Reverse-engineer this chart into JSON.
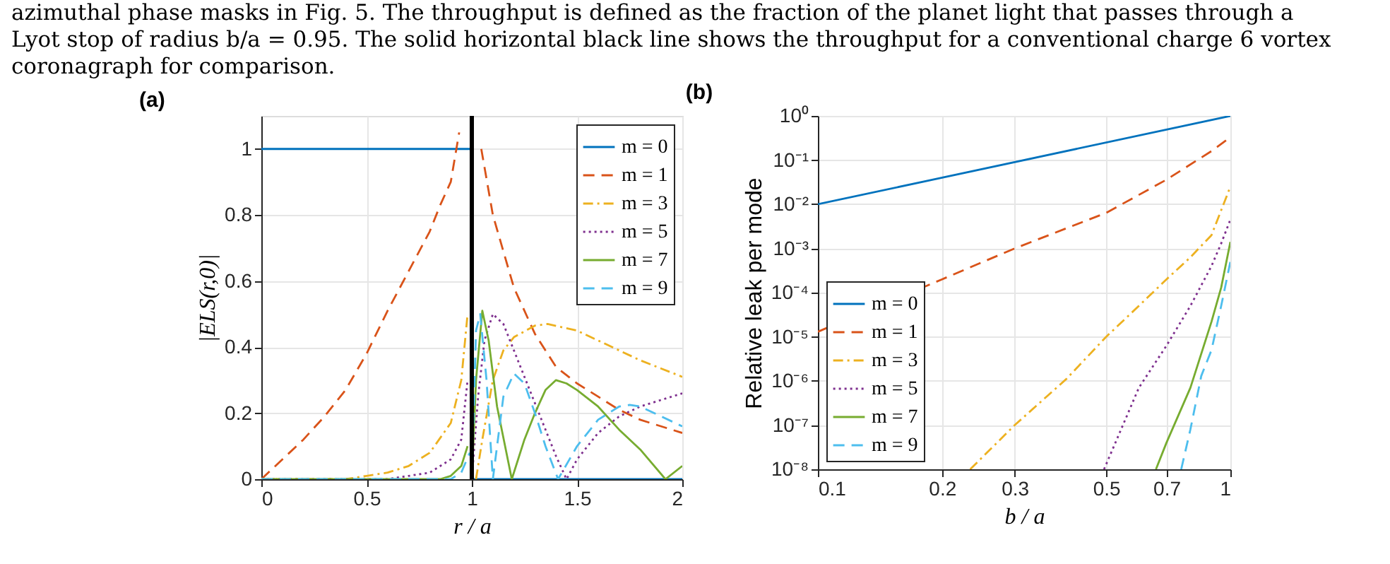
{
  "chart_data": [
    {
      "type": "line",
      "title": "(a)",
      "xlabel": "r / a",
      "ylabel": "|ELS(r,0)|",
      "annotations": [
        "azimuthal phase masks in Fig. 5. The throughput is defined as the fraction of the planet light that passes through a",
        "Lyot stop of radius b/a = 0.95. The solid horizontal black line shows the throughput for a conventional charge 6 vortex",
        "coronagraph for comparison."
      ],
      "xlim": [
        0,
        2
      ],
      "xticks": [
        0,
        0.5,
        1,
        1.5,
        2
      ],
      "ylim": [
        0,
        1.1
      ],
      "yticks": [
        0,
        0.2,
        0.4,
        0.6,
        0.8,
        1
      ],
      "grid": true,
      "legend": "top right",
      "ref_lines": [
        {
          "axis": "x",
          "value": 1,
          "color": "#000000"
        }
      ],
      "series": [
        {
          "name": "m = 0",
          "color": "#0072bd",
          "line_style": "solid",
          "x": [
            0,
            1,
            1,
            2
          ],
          "values": [
            1,
            1,
            0,
            0
          ]
        },
        {
          "name": "m = 1",
          "color": "#d95319",
          "line_style": "dashed",
          "x": [
            0,
            0.1,
            0.2,
            0.3,
            0.4,
            0.5,
            0.6,
            0.7,
            0.8,
            0.85,
            0.9,
            0.94,
            1.0,
            1.045,
            1.1,
            1.2,
            1.3,
            1.4,
            1.5,
            1.6,
            1.7,
            1.8,
            1.9,
            2
          ],
          "values": [
            0,
            0.06,
            0.12,
            0.19,
            0.27,
            0.38,
            0.51,
            0.63,
            0.75,
            0.83,
            0.9,
            1.05,
            null,
            1.0,
            0.8,
            0.58,
            0.44,
            0.34,
            0.29,
            0.25,
            0.21,
            0.18,
            0.16,
            0.14
          ]
        },
        {
          "name": "m = 3",
          "color": "#edb120",
          "line_style": "dashdot",
          "x": [
            0,
            0.4,
            0.5,
            0.6,
            0.7,
            0.8,
            0.9,
            0.95,
            0.98,
            1.0,
            1.02,
            1.05,
            1.1,
            1.15,
            1.2,
            1.3,
            1.36,
            1.5,
            1.6,
            1.7,
            1.8,
            1.9,
            2
          ],
          "values": [
            0,
            0,
            0.01,
            0.02,
            0.04,
            0.08,
            0.17,
            0.3,
            0.5,
            null,
            0,
            0.12,
            0.3,
            0.39,
            0.43,
            0.465,
            0.47,
            0.45,
            0.42,
            0.39,
            0.36,
            0.335,
            0.31
          ]
        },
        {
          "name": "m = 5",
          "color": "#7e2f8e",
          "line_style": "dotted",
          "x": [
            0,
            0.6,
            0.7,
            0.8,
            0.9,
            0.95,
            0.98,
            0.99,
            1.0,
            1.03,
            1.06,
            1.1,
            1.15,
            1.2,
            1.3,
            1.4,
            1.45,
            1.5,
            1.6,
            1.7,
            1.8,
            1.9,
            2
          ],
          "values": [
            0,
            0,
            0.01,
            0.02,
            0.06,
            0.12,
            0.3,
            null,
            0,
            0.25,
            0.42,
            0.5,
            0.47,
            0.39,
            0.23,
            0.07,
            0,
            0.06,
            0.14,
            0.19,
            0.22,
            0.24,
            0.26
          ]
        },
        {
          "name": "m = 7",
          "color": "#77ac30",
          "line_style": "solid",
          "x": [
            0,
            0.85,
            0.9,
            0.95,
            0.98,
            0.99,
            1.0,
            1.02,
            1.05,
            1.08,
            1.12,
            1.19,
            1.25,
            1.3,
            1.35,
            1.4,
            1.45,
            1.5,
            1.6,
            1.7,
            1.8,
            1.92,
            2
          ],
          "values": [
            0,
            0,
            0.01,
            0.04,
            0.1,
            null,
            0,
            0.3,
            0.51,
            0.42,
            0.22,
            0,
            0.12,
            0.2,
            0.27,
            0.3,
            0.29,
            0.27,
            0.22,
            0.15,
            0.09,
            0,
            0.04
          ]
        },
        {
          "name": "m = 9",
          "color": "#4dbeee",
          "line_style": "dashed",
          "x": [
            0,
            0.9,
            0.95,
            0.99,
            0.995,
            1.0,
            1.02,
            1.04,
            1.07,
            1.1,
            1.15,
            1.2,
            1.25,
            1.3,
            1.35,
            1.41,
            1.5,
            1.6,
            1.7,
            1.75,
            1.8,
            1.9,
            2
          ],
          "values": [
            0,
            0,
            0.02,
            0.08,
            null,
            0,
            0.45,
            0.5,
            0.3,
            0,
            0.25,
            0.32,
            0.29,
            0.2,
            0.1,
            0,
            0.1,
            0.18,
            0.22,
            0.225,
            0.22,
            0.19,
            0.16
          ]
        }
      ]
    },
    {
      "type": "line",
      "title": "(b)",
      "xlabel": "b / a",
      "ylabel": "Relative leak per mode",
      "log": "xy",
      "xlim": [
        0.1,
        1
      ],
      "xticks": [
        0.1,
        0.2,
        0.3,
        0.5,
        0.7,
        1
      ],
      "ylim": [
        1e-08,
        1
      ],
      "yticks": [
        {
          "value": 1e-08,
          "label": "10⁻⁸"
        },
        {
          "value": 1e-07,
          "label": "10⁻⁷"
        },
        {
          "value": 1e-06,
          "label": "10⁻⁶"
        },
        {
          "value": 1e-05,
          "label": "10⁻⁵"
        },
        {
          "value": 0.0001,
          "label": "10⁻⁴"
        },
        {
          "value": 0.001,
          "label": "10⁻³"
        },
        {
          "value": 0.01,
          "label": "10⁻²"
        },
        {
          "value": 0.1,
          "label": "10⁻¹"
        },
        {
          "value": 1,
          "label": "10⁰"
        }
      ],
      "grid": true,
      "legend": "bottom left",
      "series": [
        {
          "name": "m = 0",
          "color": "#0072bd",
          "line_style": "solid",
          "x": [
            0.1,
            1
          ],
          "values": [
            0.01,
            1
          ]
        },
        {
          "name": "m = 1",
          "color": "#d95319",
          "line_style": "dashed",
          "x": [
            0.1,
            0.2,
            0.3,
            0.5,
            0.7,
            0.9,
            1
          ],
          "values": [
            1.3e-05,
            0.0002,
            0.001,
            0.0064,
            0.036,
            0.16,
            0.33
          ]
        },
        {
          "name": "m = 3",
          "color": "#edb120",
          "line_style": "dashdot",
          "x": [
            0.234,
            0.3,
            0.4,
            0.5,
            0.6,
            0.7,
            0.8,
            0.9,
            1
          ],
          "values": [
            1e-08,
            1e-07,
            1.1e-06,
            1e-05,
            5e-05,
            0.0002,
            0.00063,
            0.002,
            0.025
          ]
        },
        {
          "name": "m = 5",
          "color": "#7e2f8e",
          "line_style": "dotted",
          "x": [
            0.494,
            0.6,
            0.7,
            0.8,
            0.9,
            0.95,
            1
          ],
          "values": [
            1e-08,
            7e-07,
            6.3e-06,
            5e-05,
            0.0004,
            0.0013,
            0.0045
          ]
        },
        {
          "name": "m = 7",
          "color": "#77ac30",
          "line_style": "solid",
          "x": [
            0.66,
            0.7,
            0.8,
            0.9,
            0.95,
            1
          ],
          "values": [
            1e-08,
            4e-08,
            7e-07,
            2.2e-05,
            0.00013,
            0.0014
          ]
        },
        {
          "name": "m = 9",
          "color": "#4dbeee",
          "line_style": "dashed",
          "x": [
            0.76,
            0.8,
            0.85,
            0.9,
            0.95,
            1
          ],
          "values": [
            1e-08,
            8e-08,
            1.3e-06,
            5e-06,
            5e-05,
            0.0005
          ]
        }
      ]
    }
  ]
}
